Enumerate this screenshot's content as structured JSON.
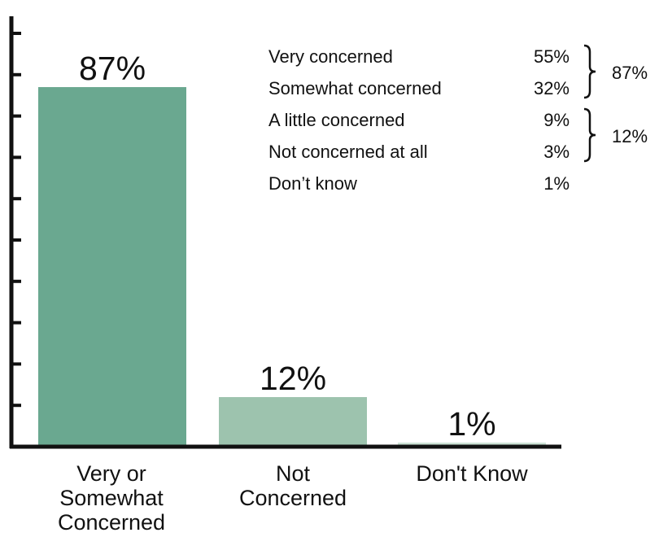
{
  "chart_data": {
    "type": "bar",
    "categories": [
      "Very or\nSomewhat\nConcerned",
      "Not\nConcerned",
      "Don't Know"
    ],
    "values": [
      87,
      12,
      1
    ],
    "data_labels": [
      "87%",
      "12%",
      "1%"
    ],
    "ylim": [
      0,
      100
    ],
    "colors": [
      "#6aa890",
      "#9dc3ae",
      "#cde3d6"
    ],
    "breakdown": [
      {
        "label": "Very concerned",
        "value": "55%"
      },
      {
        "label": "Somewhat concerned",
        "value": "32%"
      },
      {
        "label": "A little concerned",
        "value": "9%"
      },
      {
        "label": "Not concerned at all",
        "value": "3%"
      },
      {
        "label": "Don’t know",
        "value": "1%"
      }
    ],
    "group_totals": [
      "87%",
      "12%"
    ]
  }
}
